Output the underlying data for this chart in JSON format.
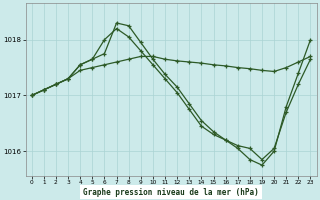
{
  "title": "Graphe pression niveau de la mer (hPa)",
  "bg_color": "#cceaea",
  "grid_color": "#aad4d4",
  "line_color": "#2d5a27",
  "xlabel_bg": "#ffffff",
  "xlim": [
    -0.5,
    23.5
  ],
  "ylim": [
    1015.55,
    1018.65
  ],
  "yticks": [
    1016,
    1017,
    1018
  ],
  "xticks": [
    0,
    1,
    2,
    3,
    4,
    5,
    6,
    7,
    8,
    9,
    10,
    11,
    12,
    13,
    14,
    15,
    16,
    17,
    18,
    19,
    20,
    21,
    22,
    23
  ],
  "line1_x": [
    0,
    1,
    2,
    3,
    4,
    5,
    6,
    7,
    8,
    9,
    10,
    11,
    12,
    13,
    14,
    15,
    16,
    17,
    18,
    19,
    20,
    21,
    22,
    23
  ],
  "line1_y": [
    1017.0,
    1017.1,
    1017.2,
    1017.3,
    1017.45,
    1017.5,
    1017.55,
    1017.6,
    1017.65,
    1017.7,
    1017.7,
    1017.65,
    1017.62,
    1017.6,
    1017.58,
    1017.55,
    1017.53,
    1017.5,
    1017.48,
    1017.45,
    1017.43,
    1017.5,
    1017.6,
    1017.7
  ],
  "line2_x": [
    0,
    1,
    2,
    3,
    4,
    5,
    6,
    7,
    8,
    9,
    10,
    11,
    12,
    13,
    14,
    15,
    16,
    17,
    18,
    19,
    20,
    21,
    22,
    23
  ],
  "line2_y": [
    1017.0,
    1017.1,
    1017.2,
    1017.3,
    1017.55,
    1017.65,
    1018.0,
    1018.2,
    1018.05,
    1017.8,
    1017.55,
    1017.3,
    1017.05,
    1016.75,
    1016.45,
    1016.3,
    1016.2,
    1016.1,
    1016.05,
    1015.85,
    1016.05,
    1016.7,
    1017.2,
    1017.65
  ],
  "line3_x": [
    0,
    1,
    2,
    3,
    4,
    5,
    6,
    7,
    8,
    9,
    10,
    11,
    12,
    13,
    14,
    15,
    16,
    17,
    18,
    19,
    20,
    21,
    22,
    23
  ],
  "line3_y": [
    1017.0,
    1017.1,
    1017.2,
    1017.3,
    1017.55,
    1017.65,
    1017.75,
    1018.3,
    1018.25,
    1017.95,
    1017.65,
    1017.38,
    1017.15,
    1016.85,
    1016.55,
    1016.35,
    1016.2,
    1016.05,
    1015.85,
    1015.75,
    1016.0,
    1016.8,
    1017.4,
    1018.0
  ]
}
